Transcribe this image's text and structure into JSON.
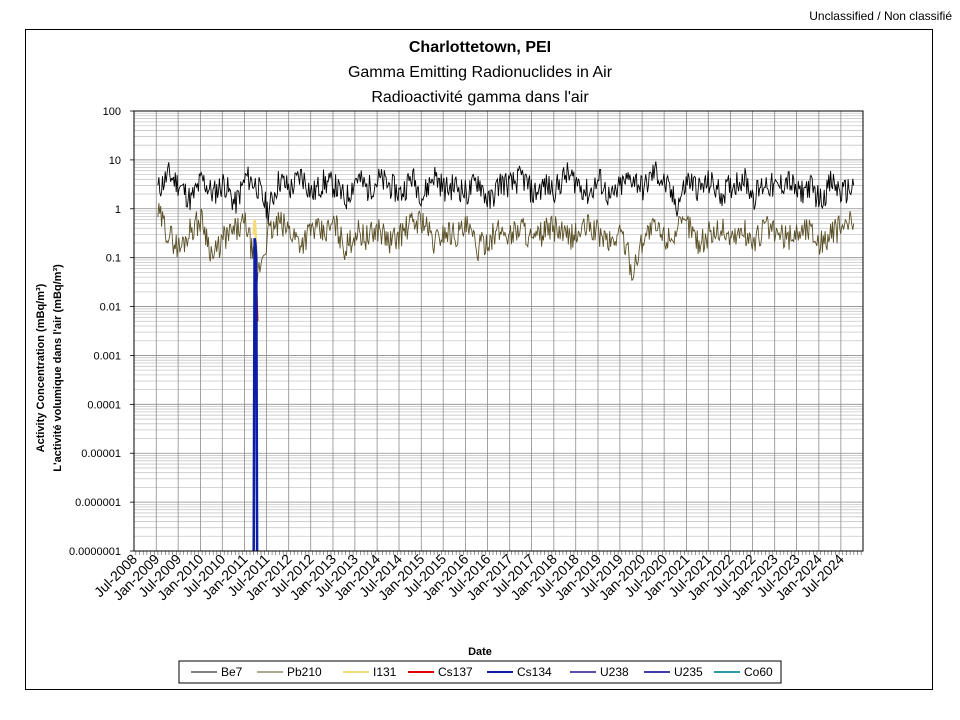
{
  "classification": "Unclassified / Non classifié",
  "chart_data": {
    "type": "line",
    "title": [
      "Charlottetown, PEI",
      "Gamma Emitting Radionuclides in Air",
      "Radioactivité gamma dans l'air"
    ],
    "xlabel": "Date",
    "ylabel": [
      "Activity Concentration  (mBq/m³)",
      "L'activité volumique dans l'air (mBq/m³)"
    ],
    "yscale": "log",
    "ylim": [
      1e-07,
      100
    ],
    "yticks": [
      "100",
      "10",
      "1",
      "0.1",
      "0.01",
      "0.001",
      "0.0001",
      "0.00001",
      "0.000001",
      "0.0000001"
    ],
    "xlim": [
      "2008-07-01",
      "2024-12-31"
    ],
    "xticks": [
      "Jul-2008",
      "Jan-2009",
      "Jul-2009",
      "Jan-2010",
      "Jul-2010",
      "Jan-2011",
      "Jul-2011",
      "Jan-2012",
      "Jul-2012",
      "Jan-2013",
      "Jul-2013",
      "Jan-2014",
      "Jul-2014",
      "Jan-2015",
      "Jul-2015",
      "Jan-2016",
      "Jul-2016",
      "Jan-2017",
      "Jul-2017",
      "Jan-2018",
      "Jul-2018",
      "Jan-2019",
      "Jul-2019",
      "Jan-2020",
      "Jul-2020",
      "Jan-2021",
      "Jul-2021",
      "Jan-2022",
      "Jul-2022",
      "Jan-2023",
      "Jul-2023",
      "Jan-2024",
      "Jul-2024"
    ],
    "grid": true,
    "legend_position": "bottom",
    "series": [
      {
        "name": "Be7",
        "color": "#000000",
        "x": [
          "2009-01",
          "2009-04",
          "2009-07",
          "2009-10",
          "2010-01",
          "2010-04",
          "2010-07",
          "2010-10",
          "2011-01",
          "2011-04",
          "2011-07",
          "2011-10",
          "2012-01",
          "2012-04",
          "2012-07",
          "2012-10",
          "2013-01",
          "2013-04",
          "2013-07",
          "2013-10",
          "2014-01",
          "2014-04",
          "2014-07",
          "2014-10",
          "2015-01",
          "2015-04",
          "2015-07",
          "2015-10",
          "2016-01",
          "2016-04",
          "2016-07",
          "2016-10",
          "2017-01",
          "2017-04",
          "2017-07",
          "2017-10",
          "2018-01",
          "2018-04",
          "2018-07",
          "2018-10",
          "2019-01",
          "2019-04",
          "2019-07",
          "2019-10",
          "2020-01",
          "2020-04",
          "2020-07",
          "2020-10",
          "2021-01",
          "2021-04",
          "2021-07",
          "2021-10",
          "2022-01",
          "2022-04",
          "2022-07",
          "2022-10",
          "2023-01",
          "2023-04",
          "2023-07",
          "2023-10",
          "2024-01",
          "2024-04",
          "2024-07",
          "2024-10"
        ],
        "y": [
          2.5,
          5.0,
          3.0,
          1.5,
          4.0,
          2.0,
          3.5,
          1.2,
          4.5,
          3.0,
          0.9,
          4.0,
          2.5,
          5.0,
          2.0,
          3.5,
          3.0,
          1.5,
          4.5,
          2.5,
          4.0,
          3.0,
          2.0,
          4.5,
          1.8,
          5.0,
          2.5,
          3.0,
          2.0,
          4.0,
          1.3,
          3.5,
          3.0,
          4.5,
          2.0,
          3.0,
          2.5,
          5.0,
          3.5,
          2.0,
          4.0,
          1.5,
          3.0,
          4.5,
          2.5,
          6.0,
          3.0,
          1.2,
          4.0,
          2.5,
          3.5,
          2.0,
          3.0,
          4.5,
          1.8,
          3.5,
          2.5,
          4.0,
          2.0,
          3.0,
          1.5,
          3.5,
          2.0,
          3.0
        ]
      },
      {
        "name": "Pb210",
        "color": "#5a5026",
        "x": [
          "2009-01",
          "2009-04",
          "2009-07",
          "2009-10",
          "2010-01",
          "2010-04",
          "2010-07",
          "2010-10",
          "2011-01",
          "2011-04",
          "2011-07",
          "2011-10",
          "2012-01",
          "2012-04",
          "2012-07",
          "2012-10",
          "2013-01",
          "2013-04",
          "2013-07",
          "2013-10",
          "2014-01",
          "2014-04",
          "2014-07",
          "2014-10",
          "2015-01",
          "2015-04",
          "2015-07",
          "2015-10",
          "2016-01",
          "2016-04",
          "2016-07",
          "2016-10",
          "2017-01",
          "2017-04",
          "2017-07",
          "2017-10",
          "2018-01",
          "2018-04",
          "2018-07",
          "2018-10",
          "2019-01",
          "2019-04",
          "2019-07",
          "2019-10",
          "2020-01",
          "2020-04",
          "2020-07",
          "2020-10",
          "2021-01",
          "2021-04",
          "2021-07",
          "2021-10",
          "2022-01",
          "2022-04",
          "2022-07",
          "2022-10",
          "2023-01",
          "2023-04",
          "2023-07",
          "2023-10",
          "2024-01",
          "2024-04",
          "2024-07",
          "2024-10"
        ],
        "y": [
          0.8,
          0.3,
          0.15,
          0.4,
          0.6,
          0.1,
          0.25,
          0.35,
          0.5,
          0.04,
          0.3,
          0.5,
          0.35,
          0.2,
          0.4,
          0.3,
          0.5,
          0.15,
          0.35,
          0.25,
          0.4,
          0.2,
          0.3,
          0.5,
          0.6,
          0.2,
          0.35,
          0.3,
          0.4,
          0.15,
          0.25,
          0.35,
          0.3,
          0.45,
          0.2,
          0.35,
          0.4,
          0.25,
          0.3,
          0.45,
          0.3,
          0.2,
          0.35,
          0.05,
          0.3,
          0.4,
          0.25,
          0.35,
          0.5,
          0.2,
          0.3,
          0.4,
          0.25,
          0.35,
          0.2,
          0.45,
          0.3,
          0.25,
          0.35,
          0.4,
          0.2,
          0.3,
          0.45,
          0.5
        ]
      },
      {
        "name": "I131",
        "color": "#f5d97a",
        "x": [
          "2011-03-18",
          "2011-03-25",
          "2011-04-01",
          "2011-04-08",
          "2011-04-15"
        ],
        "y": [
          0.3,
          0.6,
          0.4,
          0.15,
          0.05
        ]
      },
      {
        "name": "Cs137",
        "color": "#e00000",
        "x": [
          "2011-03-25",
          "2011-04-01",
          "2011-04-08",
          "2011-04-15",
          "2011-04-22"
        ],
        "y": [
          0.05,
          0.2,
          0.1,
          0.02,
          0.005
        ]
      },
      {
        "name": "Cs134",
        "color": "#0a1ea6",
        "x": [
          "2011-03-18",
          "2011-03-25",
          "2011-04-01",
          "2011-04-08",
          "2011-04-15"
        ],
        "y": [
          1e-07,
          0.25,
          0.2,
          0.1,
          1e-07
        ]
      },
      {
        "name": "U238",
        "color": "#5b4ea8",
        "x": [],
        "y": []
      },
      {
        "name": "U235",
        "color": "#3e3ea5",
        "x": [],
        "y": []
      },
      {
        "name": "Co60",
        "color": "#2a9aa8",
        "x": [],
        "y": []
      }
    ]
  }
}
